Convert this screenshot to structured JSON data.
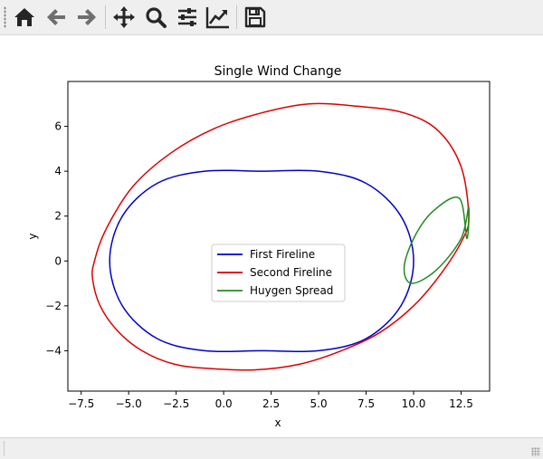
{
  "toolbar": {
    "buttons": [
      {
        "name": "home-icon"
      },
      {
        "name": "back-arrow-icon"
      },
      {
        "name": "forward-arrow-icon"
      },
      {
        "name": "pan-move-icon"
      },
      {
        "name": "zoom-magnifier-icon"
      },
      {
        "name": "subplots-sliders-icon"
      },
      {
        "name": "edit-axes-lines-icon"
      },
      {
        "name": "save-floppy-icon"
      }
    ],
    "icon_color": "#262626"
  },
  "status": {
    "text": ""
  },
  "chart_data": {
    "type": "line",
    "title": "Single Wind Change",
    "xlabel": "x",
    "ylabel": "y",
    "xlim": [
      -8.2,
      14.0
    ],
    "ylim": [
      -5.8,
      8.0
    ],
    "xticks": [
      -7.5,
      -5.0,
      -2.5,
      0.0,
      2.5,
      5.0,
      7.5,
      10.0,
      12.5
    ],
    "xtick_labels": [
      "−7.5",
      "−5.0",
      "−2.5",
      "0.0",
      "2.5",
      "5.0",
      "7.5",
      "10.0",
      "12.5"
    ],
    "yticks": [
      -4,
      -2,
      0,
      2,
      4,
      6
    ],
    "ytick_labels": [
      "−4",
      "−2",
      "0",
      "2",
      "4",
      "6"
    ],
    "grid": false,
    "legend_position": "center",
    "series": [
      {
        "name": "First Fireline",
        "color": "#0000cc",
        "x": [
          10.0,
          9.33,
          7.5,
          5.0,
          2.0,
          -1.0,
          -3.5,
          -5.33,
          -6.0,
          -5.33,
          -3.5,
          -1.0,
          2.0,
          5.0,
          7.5,
          9.33,
          10.0
        ],
        "y": [
          0.0,
          2.0,
          3.46,
          4.0,
          4.0,
          4.0,
          3.46,
          2.0,
          0.0,
          -2.0,
          -3.46,
          -4.0,
          -4.0,
          -4.0,
          -3.46,
          -2.0,
          0.0
        ]
      },
      {
        "name": "Second Fireline",
        "color": "#dd0000",
        "x": [
          12.9,
          12.5,
          11.3,
          9.5,
          7.0,
          4.5,
          2.0,
          -0.5,
          -2.8,
          -4.8,
          -6.2,
          -6.8,
          -6.9,
          -6.5,
          -5.6,
          -4.3,
          -2.6,
          -0.6,
          1.7,
          4.0,
          6.2,
          8.2,
          10.0,
          11.5,
          12.6,
          12.9
        ],
        "y": [
          2.0,
          4.2,
          5.8,
          6.6,
          6.9,
          7.0,
          6.6,
          5.9,
          4.8,
          3.3,
          1.4,
          0.0,
          -0.8,
          -2.0,
          -3.1,
          -4.0,
          -4.6,
          -4.8,
          -4.85,
          -4.6,
          -4.0,
          -3.2,
          -2.0,
          -0.5,
          1.0,
          2.0
        ]
      },
      {
        "name": "Huygen Spread",
        "color": "#228b22",
        "x": [
          12.8,
          12.4,
          11.0,
          10.0,
          9.5,
          9.9,
          11.2,
          12.5,
          12.9
        ],
        "y": [
          1.0,
          2.8,
          2.2,
          1.0,
          -0.3,
          -1.0,
          -0.4,
          1.0,
          2.4
        ]
      }
    ]
  }
}
